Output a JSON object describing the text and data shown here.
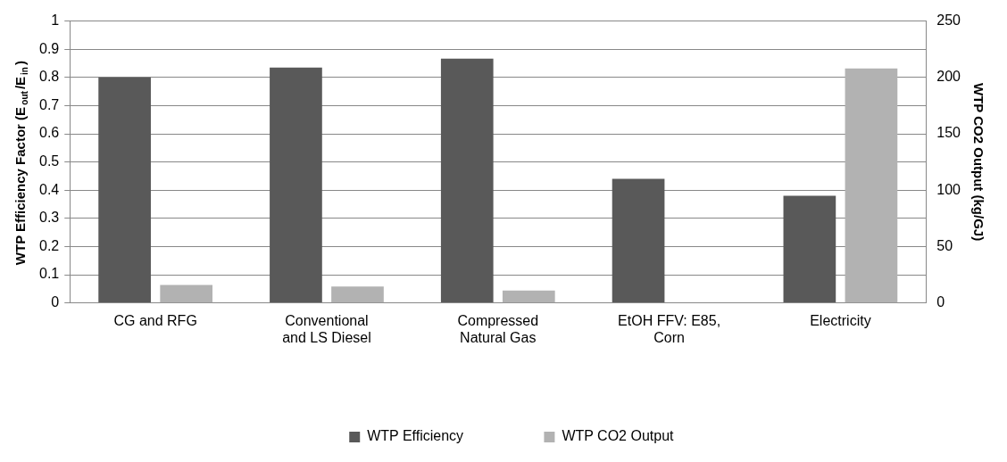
{
  "chart_data": {
    "type": "bar",
    "categories": [
      "CG and RFG",
      "Conventional and LS Diesel",
      "Compressed Natural Gas",
      "EtOH FFV: E85, Corn",
      "Electricity"
    ],
    "ylabel": "WTP Efficiency Factor (E$_{out}$/E$_{in}$)",
    "y2label": "WTP CO2 Output (kg/GJ)",
    "series": [
      {
        "name": "WTP Efficiency",
        "color": "#595959",
        "values": [
          0.8,
          0.835,
          0.867,
          0.44,
          0.38
        ]
      },
      {
        "name": "WTP CO2 Output",
        "color": "#b2b2b2",
        "axis": "y2",
        "values": [
          16,
          14.5,
          11,
          null,
          208
        ]
      }
    ],
    "ylim": [
      0,
      1
    ],
    "yticks": [
      0,
      0.1,
      0.2,
      0.3,
      0.4,
      0.5,
      0.6,
      0.7,
      0.8,
      0.9,
      1
    ],
    "y2lim": [
      0,
      250
    ],
    "y2ticks": [
      0,
      50,
      100,
      150,
      200,
      250
    ],
    "grid": "y",
    "legend": "bottom"
  }
}
